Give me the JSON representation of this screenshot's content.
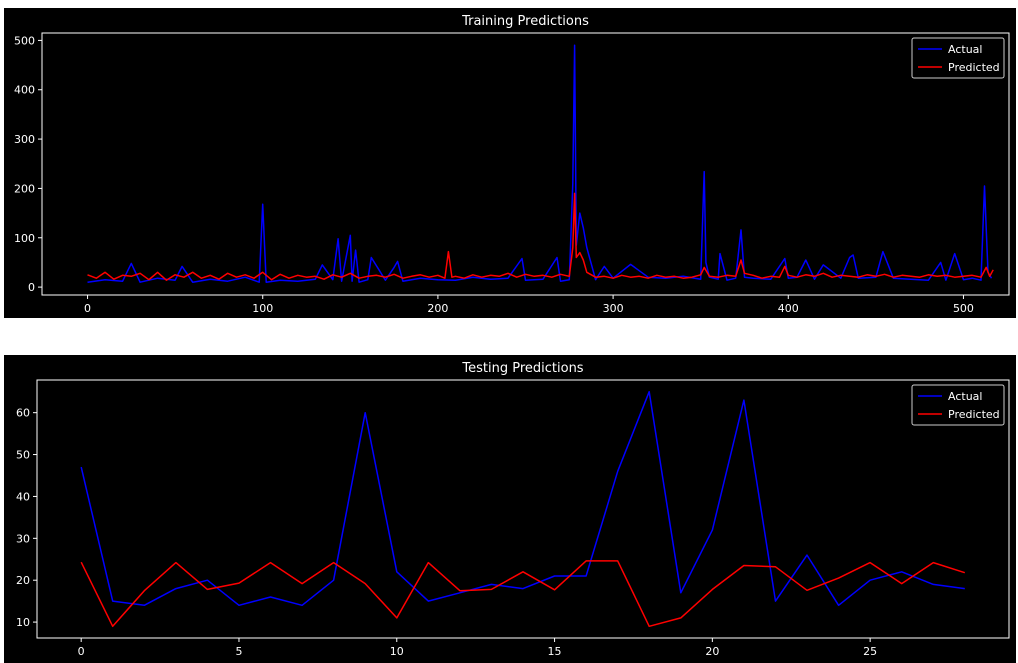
{
  "chart_data": [
    {
      "type": "line",
      "title": "Training Predictions",
      "xlabel": "",
      "ylabel": "",
      "xlim": [
        -26,
        526
      ],
      "ylim": [
        -16,
        515
      ],
      "x_ticks": [
        0,
        100,
        200,
        300,
        400,
        500
      ],
      "y_ticks": [
        0,
        100,
        200,
        300,
        400,
        500
      ],
      "legend": {
        "placement": "top-right",
        "entries": [
          "Actual",
          "Predicted"
        ]
      },
      "grid": false,
      "colors": {
        "Actual": "#0000ff",
        "Predicted": "#ff0000",
        "background": "#000000",
        "text": "#ffffff"
      },
      "series": [
        {
          "name": "Actual",
          "x": [
            0,
            10,
            20,
            25,
            30,
            40,
            50,
            54,
            60,
            70,
            80,
            90,
            98,
            100,
            102,
            110,
            120,
            130,
            134,
            140,
            143,
            145,
            150,
            151,
            153,
            155,
            160,
            162,
            170,
            175,
            177,
            180,
            190,
            200,
            210,
            220,
            230,
            240,
            248,
            250,
            260,
            268,
            270,
            275,
            277,
            278,
            279,
            281,
            283,
            285,
            290,
            295,
            300,
            310,
            320,
            330,
            340,
            350,
            352,
            353,
            355,
            360,
            361,
            365,
            370,
            373,
            375,
            380,
            390,
            398,
            400,
            405,
            410,
            415,
            420,
            430,
            435,
            437,
            440,
            450,
            454,
            460,
            470,
            480,
            487,
            490,
            495,
            500,
            505,
            510,
            512,
            514,
            516
          ],
          "values": [
            10,
            15,
            12,
            48,
            10,
            18,
            14,
            42,
            10,
            16,
            12,
            20,
            10,
            168,
            10,
            14,
            12,
            16,
            45,
            15,
            98,
            12,
            105,
            12,
            75,
            10,
            15,
            60,
            14,
            40,
            52,
            12,
            18,
            15,
            14,
            20,
            16,
            18,
            58,
            14,
            16,
            60,
            12,
            15,
            210,
            490,
            85,
            150,
            120,
            80,
            15,
            42,
            18,
            46,
            20,
            18,
            22,
            16,
            234,
            50,
            20,
            16,
            68,
            14,
            18,
            116,
            20,
            18,
            16,
            58,
            18,
            20,
            55,
            16,
            45,
            18,
            60,
            65,
            18,
            20,
            72,
            18,
            16,
            14,
            50,
            14,
            68,
            15,
            18,
            14,
            205,
            30,
            18
          ]
        },
        {
          "name": "Predicted",
          "x": [
            0,
            5,
            10,
            15,
            20,
            25,
            30,
            35,
            40,
            45,
            50,
            55,
            60,
            65,
            70,
            75,
            80,
            85,
            90,
            95,
            100,
            105,
            110,
            115,
            120,
            125,
            130,
            135,
            140,
            145,
            150,
            155,
            160,
            165,
            170,
            175,
            180,
            185,
            190,
            195,
            200,
            204,
            206,
            208,
            210,
            215,
            220,
            225,
            230,
            235,
            240,
            245,
            250,
            255,
            260,
            265,
            270,
            275,
            277,
            278,
            279,
            281,
            283,
            285,
            290,
            295,
            300,
            305,
            310,
            315,
            320,
            325,
            330,
            335,
            340,
            345,
            350,
            352,
            355,
            360,
            365,
            370,
            373,
            375,
            380,
            385,
            390,
            395,
            398,
            400,
            405,
            410,
            415,
            420,
            425,
            430,
            435,
            440,
            445,
            450,
            455,
            460,
            465,
            470,
            475,
            480,
            485,
            490,
            495,
            500,
            505,
            510,
            513,
            515,
            517
          ],
          "values": [
            25,
            18,
            30,
            16,
            24,
            22,
            28,
            15,
            30,
            14,
            25,
            20,
            30,
            18,
            24,
            16,
            28,
            20,
            25,
            18,
            30,
            15,
            26,
            18,
            24,
            20,
            22,
            16,
            25,
            20,
            28,
            18,
            22,
            24,
            20,
            26,
            18,
            22,
            25,
            20,
            24,
            18,
            72,
            20,
            22,
            18,
            25,
            20,
            24,
            22,
            28,
            20,
            26,
            22,
            24,
            20,
            26,
            22,
            80,
            190,
            60,
            70,
            55,
            30,
            20,
            22,
            18,
            24,
            20,
            22,
            18,
            24,
            20,
            22,
            18,
            20,
            25,
            40,
            22,
            20,
            24,
            22,
            55,
            28,
            24,
            18,
            22,
            20,
            42,
            24,
            20,
            25,
            22,
            28,
            20,
            24,
            22,
            20,
            25,
            22,
            26,
            20,
            24,
            22,
            20,
            25,
            22,
            24,
            20,
            22,
            24,
            20,
            40,
            22,
            35
          ]
        }
      ]
    },
    {
      "type": "line",
      "title": "Testing Predictions",
      "xlabel": "",
      "ylabel": "",
      "xlim": [
        -1.4,
        29.4
      ],
      "ylim": [
        6.2,
        67.8
      ],
      "x_ticks": [
        0,
        5,
        10,
        15,
        20,
        25
      ],
      "y_ticks": [
        10,
        20,
        30,
        40,
        50,
        60
      ],
      "legend": {
        "placement": "top-right",
        "entries": [
          "Actual",
          "Predicted"
        ]
      },
      "grid": false,
      "colors": {
        "Actual": "#0000ff",
        "Predicted": "#ff0000",
        "background": "#000000",
        "text": "#ffffff"
      },
      "series": [
        {
          "name": "Actual",
          "x": [
            0,
            1,
            2,
            3,
            4,
            5,
            6,
            7,
            8,
            9,
            10,
            11,
            12,
            13,
            14,
            15,
            16,
            17,
            18,
            19,
            20,
            21,
            22,
            23,
            24,
            25,
            26,
            27,
            28
          ],
          "values": [
            47,
            15,
            14,
            18,
            20,
            14,
            16,
            14,
            20,
            60,
            22,
            15,
            17,
            19,
            18,
            21,
            21,
            46,
            65,
            17,
            32,
            63,
            15,
            26,
            14,
            20,
            22,
            19,
            18
          ]
        },
        {
          "name": "Predicted",
          "x": [
            0,
            1,
            2,
            3,
            4,
            5,
            6,
            7,
            8,
            9,
            10,
            11,
            12,
            13,
            14,
            15,
            16,
            17,
            18,
            19,
            20,
            21,
            22,
            23,
            24,
            25,
            26,
            27,
            28
          ],
          "values": [
            24.3,
            9,
            17.5,
            24.2,
            17.8,
            19.3,
            24.2,
            19.2,
            24.2,
            19.2,
            11,
            24.2,
            17.5,
            17.8,
            22,
            17.7,
            24.6,
            24.6,
            9,
            11,
            17.8,
            23.5,
            23.2,
            17.6,
            20.5,
            24.2,
            19.2,
            24.2,
            21.8
          ]
        }
      ]
    }
  ]
}
